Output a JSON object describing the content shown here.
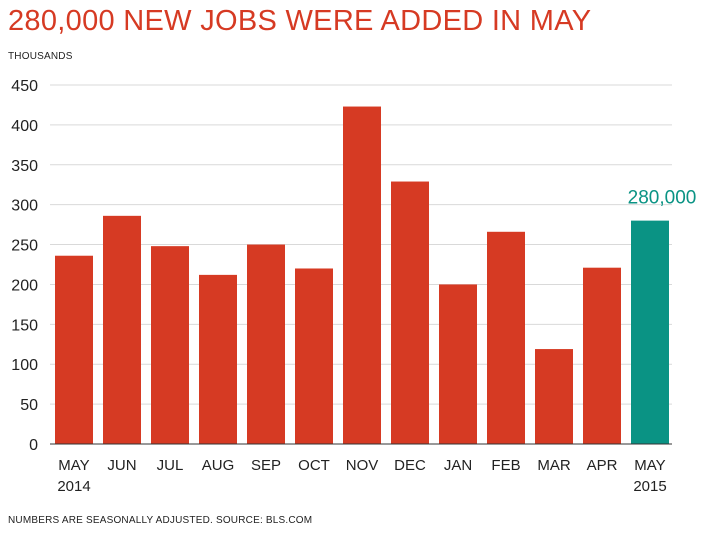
{
  "title": "280,000 NEW JOBS WERE ADDED IN MAY",
  "unit_label": "THOUSANDS",
  "source_note": "NUMBERS ARE SEASONALLY ADJUSTED. SOURCE: BLS.COM",
  "colors": {
    "title": "#d63a23",
    "bar": "#d63a23",
    "highlight": "#0a9384",
    "text": "#222222",
    "grid": "#d9d9d9"
  },
  "chart_data": {
    "type": "bar",
    "categories": [
      "MAY 2014",
      "JUN",
      "JUL",
      "AUG",
      "SEP",
      "OCT",
      "NOV",
      "DEC",
      "JAN",
      "FEB",
      "MAR",
      "APR",
      "MAY 2015"
    ],
    "category_labels": [
      [
        "MAY",
        "2014"
      ],
      [
        "JUN"
      ],
      [
        "JUL"
      ],
      [
        "AUG"
      ],
      [
        "SEP"
      ],
      [
        "OCT"
      ],
      [
        "NOV"
      ],
      [
        "DEC"
      ],
      [
        "JAN"
      ],
      [
        "FEB"
      ],
      [
        "MAR"
      ],
      [
        "APR"
      ],
      [
        "MAY",
        "2015"
      ]
    ],
    "values": [
      236,
      286,
      248,
      212,
      250,
      220,
      423,
      329,
      200,
      266,
      119,
      221,
      280
    ],
    "highlight_index": 12,
    "highlight_label": "280,000",
    "ylim": [
      0,
      450
    ],
    "yticks": [
      0,
      50,
      100,
      150,
      200,
      250,
      300,
      350,
      400,
      450
    ],
    "grid": true,
    "title": "280,000 NEW JOBS WERE ADDED IN MAY",
    "ylabel": "THOUSANDS",
    "xlabel": ""
  }
}
